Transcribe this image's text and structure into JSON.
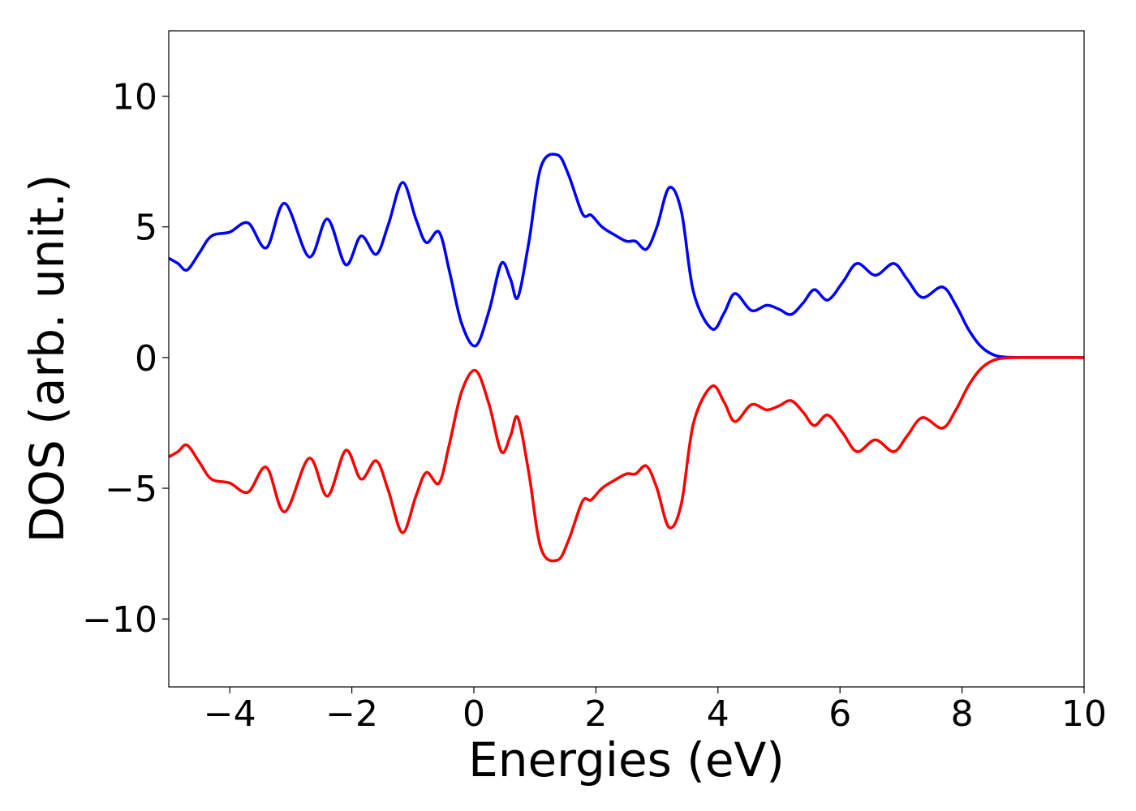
{
  "chart_data": {
    "type": "line",
    "xlabel": "Energies (eV)",
    "ylabel": "DOS (arb. unit.)",
    "xlim": [
      -5,
      10
    ],
    "ylim": [
      -12.6,
      12.5
    ],
    "xticks": [
      {
        "value": -4,
        "label": "−4"
      },
      {
        "value": -2,
        "label": "−2"
      },
      0,
      2,
      4,
      6,
      8,
      10
    ],
    "yticks": [
      {
        "value": -10,
        "label": "−10"
      },
      {
        "value": -5,
        "label": "−5"
      },
      0,
      5,
      10
    ],
    "grid": false,
    "x": [
      -5,
      -4.85,
      -4.7,
      -4.5,
      -4.3,
      -4.0,
      -3.7,
      -3.4,
      -3.1,
      -2.7,
      -2.4,
      -2.1,
      -1.85,
      -1.6,
      -1.4,
      -1.17,
      -0.95,
      -0.78,
      -0.57,
      -0.4,
      -0.2,
      0.03,
      0.25,
      0.45,
      0.6,
      0.72,
      0.9,
      1.1,
      1.37,
      1.55,
      1.78,
      1.92,
      2.1,
      2.3,
      2.5,
      2.65,
      2.83,
      3.0,
      3.2,
      3.4,
      3.6,
      3.9,
      4.1,
      4.28,
      4.55,
      4.8,
      5.0,
      5.2,
      5.4,
      5.58,
      5.8,
      6.05,
      6.28,
      6.58,
      6.88,
      7.1,
      7.35,
      7.68,
      7.9,
      8.1,
      8.3,
      8.5,
      8.7,
      9,
      9.5,
      10
    ],
    "series": [
      {
        "color": "#0000ff",
        "values": [
          3.8,
          3.6,
          3.35,
          4.0,
          4.65,
          4.8,
          5.15,
          4.2,
          5.9,
          3.85,
          5.3,
          3.55,
          4.65,
          3.95,
          5.1,
          6.7,
          5.3,
          4.4,
          4.8,
          3.3,
          1.3,
          0.45,
          1.8,
          3.6,
          3.0,
          2.3,
          4.4,
          7.3,
          7.75,
          7.0,
          5.5,
          5.45,
          5.0,
          4.7,
          4.45,
          4.45,
          4.15,
          5.0,
          6.5,
          5.6,
          2.5,
          1.1,
          1.7,
          2.45,
          1.8,
          2.0,
          1.85,
          1.65,
          2.1,
          2.6,
          2.2,
          2.9,
          3.6,
          3.15,
          3.6,
          3.0,
          2.3,
          2.7,
          2.0,
          1.1,
          0.45,
          0.12,
          0.02,
          0,
          0,
          0
        ]
      },
      {
        "color": "#ff0000",
        "values": [
          -3.8,
          -3.6,
          -3.35,
          -4.0,
          -4.65,
          -4.8,
          -5.15,
          -4.2,
          -5.9,
          -3.85,
          -5.3,
          -3.55,
          -4.65,
          -3.95,
          -5.1,
          -6.7,
          -5.3,
          -4.4,
          -4.8,
          -3.3,
          -1.3,
          -0.5,
          -1.8,
          -3.6,
          -3.0,
          -2.3,
          -4.4,
          -7.3,
          -7.75,
          -7.0,
          -5.5,
          -5.45,
          -5.0,
          -4.7,
          -4.45,
          -4.45,
          -4.15,
          -5.0,
          -6.5,
          -5.6,
          -2.5,
          -1.1,
          -1.7,
          -2.45,
          -1.8,
          -2.0,
          -1.85,
          -1.65,
          -2.1,
          -2.6,
          -2.2,
          -2.9,
          -3.6,
          -3.15,
          -3.6,
          -3.0,
          -2.3,
          -2.7,
          -2.0,
          -1.1,
          -0.45,
          -0.12,
          -0.02,
          0,
          0,
          0
        ]
      }
    ]
  }
}
